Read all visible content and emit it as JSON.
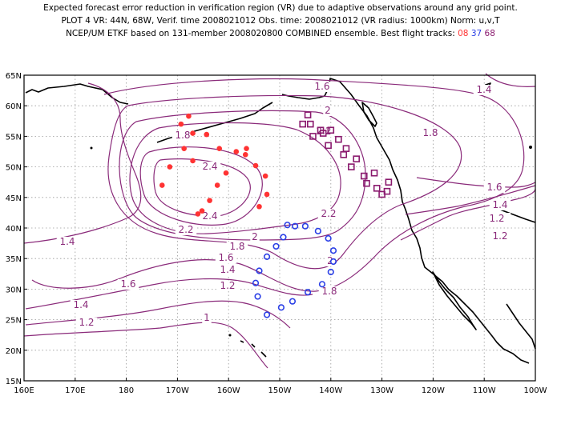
{
  "title": {
    "line1": "Expected forecast error reduction in verification region (VR) due to adaptive observations around any grid point.",
    "line2": "PLOT 4 VR: 44N, 68W, Verif. time 2008021012 Obs. time: 2008021012 (VR radius: 1000km) Norm: u,v,T",
    "line3": "NCEP/UM ETKF based on 131-member 2008020800 COMBINED ensemble.  Best flight tracks:",
    "track_ids": [
      "08",
      "37",
      "68"
    ]
  },
  "colors": {
    "contour": "#8a2a7a",
    "track_08": "#ff3333",
    "track_37": "#2a3fe6",
    "track_68": "#8a1a6e",
    "coastline": "#000000",
    "grid": "#9a9a9a"
  },
  "map": {
    "lon_range": [
      160,
      260
    ],
    "lat_range": [
      15,
      65
    ],
    "x_ticks": [
      "160E",
      "170E",
      "180",
      "170W",
      "160W",
      "150W",
      "140W",
      "130W",
      "120W",
      "110W",
      "100W"
    ],
    "y_ticks": [
      "15N",
      "20N",
      "25N",
      "30N",
      "35N",
      "40N",
      "45N",
      "50N",
      "55N",
      "60N",
      "65N"
    ],
    "grid": true,
    "contour_labels": [
      "1.6",
      "1.4",
      "1.8",
      "2",
      "2.2",
      "2.4",
      "2.4",
      "2.2",
      "2",
      "2.2",
      "1.8",
      "1.6",
      "1.4",
      "1.2",
      "1.8",
      "1.6",
      "1.4",
      "1.2",
      "1",
      "1.4",
      "1.2",
      "1.6",
      "2",
      "1.8",
      "1.2",
      "1.4",
      "1.6"
    ],
    "tracks": [
      {
        "id": "08",
        "marker": "filled-circle",
        "points": [
          [
            192.2,
            58.3
          ],
          [
            193.0,
            55.5
          ],
          [
            191.3,
            53.0
          ],
          [
            190.7,
            57.0
          ],
          [
            195.7,
            55.3
          ],
          [
            198.2,
            53.0
          ],
          [
            201.5,
            52.5
          ],
          [
            203.3,
            52.0
          ],
          [
            205.3,
            50.2
          ],
          [
            207.2,
            48.5
          ],
          [
            207.5,
            45.5
          ],
          [
            206.0,
            43.5
          ],
          [
            196.3,
            44.5
          ],
          [
            194.8,
            42.8
          ],
          [
            197.8,
            47.0
          ],
          [
            199.5,
            49.0
          ],
          [
            203.5,
            53.0
          ],
          [
            193.0,
            51.0
          ],
          [
            188.5,
            50.0
          ],
          [
            187.0,
            47.0
          ],
          [
            194.0,
            42.3
          ]
        ]
      },
      {
        "id": "37",
        "marker": "open-circle",
        "points": [
          [
            211.5,
            40.5
          ],
          [
            215.0,
            40.3
          ],
          [
            217.5,
            39.5
          ],
          [
            219.5,
            38.3
          ],
          [
            220.5,
            36.3
          ],
          [
            220.5,
            34.5
          ],
          [
            220.0,
            32.8
          ],
          [
            218.3,
            30.8
          ],
          [
            215.5,
            29.5
          ],
          [
            212.5,
            28.0
          ],
          [
            210.3,
            27.0
          ],
          [
            207.5,
            25.8
          ],
          [
            205.7,
            28.8
          ],
          [
            205.3,
            31.0
          ],
          [
            206.0,
            33.0
          ],
          [
            207.5,
            35.3
          ],
          [
            209.3,
            37.0
          ],
          [
            210.7,
            38.5
          ],
          [
            213.0,
            40.3
          ]
        ]
      },
      {
        "id": "68",
        "marker": "open-square",
        "points": [
          [
            214.5,
            57.0
          ],
          [
            215.5,
            58.5
          ],
          [
            216.5,
            55.0
          ],
          [
            218.0,
            56.0
          ],
          [
            219.5,
            53.5
          ],
          [
            220.0,
            56.0
          ],
          [
            221.5,
            54.5
          ],
          [
            222.5,
            52.0
          ],
          [
            223.0,
            53.0
          ],
          [
            224.0,
            50.0
          ],
          [
            225.0,
            51.3
          ],
          [
            226.5,
            48.5
          ],
          [
            227.0,
            47.3
          ],
          [
            228.5,
            49.0
          ],
          [
            229.0,
            46.5
          ],
          [
            230.0,
            45.5
          ],
          [
            231.0,
            46.0
          ],
          [
            231.3,
            47.5
          ],
          [
            216.0,
            57.0
          ],
          [
            218.5,
            55.5
          ]
        ]
      }
    ]
  }
}
